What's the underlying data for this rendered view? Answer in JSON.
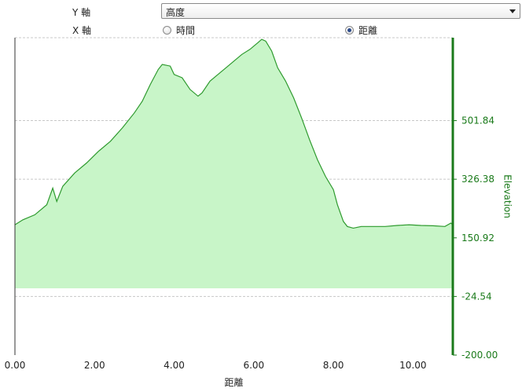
{
  "controls": {
    "y_axis_label": "Y 軸",
    "x_axis_label": "X 軸",
    "y_select_value": "高度",
    "x_options": [
      {
        "label": "時間",
        "checked": false
      },
      {
        "label": "距離",
        "checked": true
      }
    ]
  },
  "colors": {
    "fill": "#c8f5c8",
    "line": "#2e9a2e",
    "axis": "#1a7a1a",
    "grid": "#c8c8c8"
  },
  "chart_data": {
    "type": "area",
    "xlabel": "距離",
    "ylabel": "Elevation",
    "xlim": [
      0,
      11.0
    ],
    "ylim": [
      -200,
      750
    ],
    "x_ticks": [
      "0.00",
      "2.00",
      "4.00",
      "6.00",
      "8.00",
      "10.00"
    ],
    "y_ticks": [
      "-200.00",
      "-24.54",
      "150.92",
      "326.38",
      "501.84"
    ],
    "baseline": 0,
    "grid": true,
    "x": [
      0,
      0.2,
      0.5,
      0.8,
      0.95,
      1.05,
      1.2,
      1.5,
      1.8,
      2.1,
      2.4,
      2.7,
      3.0,
      3.2,
      3.4,
      3.6,
      3.7,
      3.9,
      4.0,
      4.2,
      4.4,
      4.6,
      4.7,
      4.9,
      5.1,
      5.3,
      5.5,
      5.7,
      5.9,
      6.1,
      6.2,
      6.3,
      6.45,
      6.6,
      6.8,
      7.0,
      7.2,
      7.4,
      7.6,
      7.8,
      8.0,
      8.1,
      8.25,
      8.35,
      8.5,
      8.7,
      9.0,
      9.3,
      9.6,
      9.9,
      10.2,
      10.5,
      10.8,
      10.95,
      11.0
    ],
    "y": [
      190,
      205,
      220,
      250,
      300,
      260,
      305,
      345,
      375,
      410,
      440,
      480,
      525,
      560,
      610,
      655,
      670,
      665,
      640,
      630,
      595,
      575,
      585,
      620,
      640,
      660,
      680,
      700,
      715,
      735,
      745,
      740,
      710,
      660,
      620,
      570,
      510,
      445,
      385,
      335,
      295,
      250,
      200,
      185,
      180,
      185,
      185,
      185,
      188,
      190,
      188,
      187,
      185,
      195,
      190
    ]
  }
}
